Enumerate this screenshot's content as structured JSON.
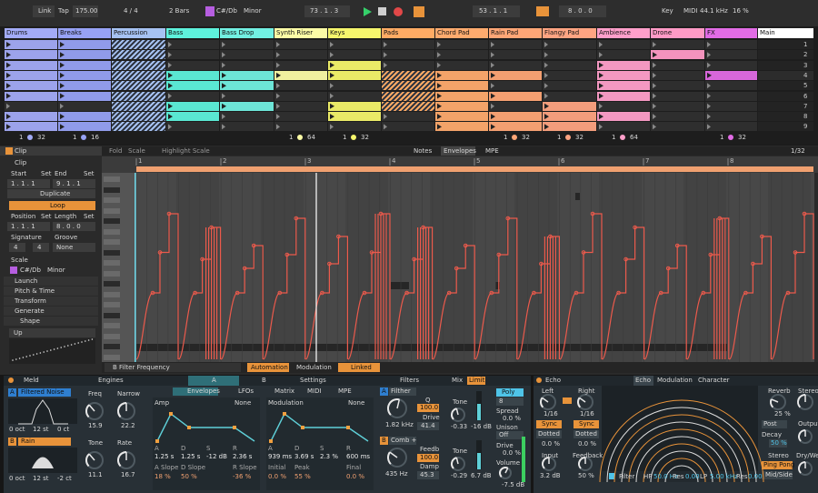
{
  "toolbar": {
    "link": "Link",
    "tap": "Tap",
    "tempo": "175.00",
    "signature": "4 / 4",
    "quantization": "2 Bars",
    "key": "C#/Db",
    "scale": "Minor",
    "arrangement_position": "73 .  1 .  3",
    "loop_start": "53 .  1 .  1",
    "loop_length": "8 .  0 .  0",
    "key_map": "Key",
    "midi_map": "MIDI",
    "sample_rate": "44.1 kHz",
    "cpu": "16 %"
  },
  "session": {
    "tracks": [
      {
        "name": "Drums",
        "color": "#a3abf7",
        "footer": [
          1,
          32
        ]
      },
      {
        "name": "Breaks",
        "color": "#97a2f5",
        "footer": [
          1,
          16
        ]
      },
      {
        "name": "Percussion",
        "color": "#a6c2f2"
      },
      {
        "name": "Bass",
        "color": "#5ef2dc"
      },
      {
        "name": "Bass Drop",
        "color": "#72f0e2"
      },
      {
        "name": "Synth Riser",
        "color": "#fcfca6",
        "footer": [
          1,
          64
        ]
      },
      {
        "name": "Keys",
        "color": "#f5f56c",
        "footer": [
          1,
          32
        ]
      },
      {
        "name": "Pads",
        "color": "#ffab64"
      },
      {
        "name": "Chord Pad",
        "color": "#ffab6e"
      },
      {
        "name": "Rain Pad",
        "color": "#ffa676",
        "footer": [
          1,
          32
        ]
      },
      {
        "name": "Flangy Pad",
        "color": "#ffa482",
        "footer": [
          1,
          32
        ]
      },
      {
        "name": "Ambience",
        "color": "#ff9fca",
        "footer": [
          1,
          64
        ]
      },
      {
        "name": "Drone",
        "color": "#ff9ac6"
      },
      {
        "name": "FX",
        "color": "#e26ce6",
        "footer": [
          1,
          32
        ]
      },
      {
        "name": "Main",
        "color": "#ffffff"
      }
    ],
    "scenes": [
      1,
      2,
      3,
      4,
      5,
      6,
      7,
      8,
      9
    ]
  },
  "clip": {
    "header": "Clip",
    "section": "Clip",
    "tabs": [
      "Fold",
      "Scale",
      "Highlight Scale"
    ],
    "editor_tabs": [
      "Notes",
      "Envelopes",
      "MPE"
    ],
    "grid": "1/32",
    "start_label": "Start",
    "set": "Set",
    "end_label": "End",
    "start": "1 .  1 .  1",
    "end": "9 .  1 .  1",
    "duplicate": "Duplicate",
    "loop": "Loop",
    "position_label": "Position",
    "length_label": "Length",
    "position": "1 .  1 .  1",
    "length": "8 .  0 .  0",
    "signature_label": "Signature",
    "groove_label": "Groove",
    "sig_num": 4,
    "sig_den": 4,
    "groove": "None",
    "scale_label": "Scale",
    "scale_root": "C#/Db",
    "scale_name": "Minor",
    "sections": [
      "Launch",
      "Pitch & Time",
      "Transform",
      "Generate"
    ],
    "shape": "Shape",
    "shape_type": "Up",
    "ruler": [
      1,
      2,
      3,
      4,
      5,
      6,
      7,
      8
    ],
    "envelope_param": "B Filter Frequency",
    "envelope_modes": [
      "Automation",
      "Modulation",
      "Linked"
    ]
  },
  "device": {
    "title": "Meld",
    "engines": "Engines",
    "tabs": [
      "A",
      "B"
    ],
    "settings": "Settings",
    "filters": "Filters",
    "mix": "Mix",
    "limit": "Limit",
    "osc_a": {
      "label": "A",
      "type": "Filtered Noise",
      "knobs": [
        {
          "name": "Freq",
          "value": "15.9"
        },
        {
          "name": "Narrow",
          "value": "22.2"
        }
      ],
      "tune": [
        "0 oct",
        "12 st",
        "0 ct"
      ]
    },
    "osc_b": {
      "label": "B",
      "type": "Rain",
      "knobs": [
        {
          "name": "Tone",
          "value": "11.1"
        },
        {
          "name": "Rate",
          "value": "16.7"
        }
      ],
      "tune": [
        "0 oct",
        "12 st",
        "-2 ct"
      ]
    },
    "env_tabs": [
      "Envelopes",
      "LFOs",
      "Matrix",
      "MIDI",
      "MPE"
    ],
    "amp": {
      "title": "Amp",
      "target": "None",
      "params": [
        {
          "name": "A",
          "value": "1.25 s"
        },
        {
          "name": "D",
          "value": "1.25 s"
        },
        {
          "name": "S",
          "value": "-12 dB"
        },
        {
          "name": "R",
          "value": "2.36 s"
        }
      ],
      "slopes": [
        {
          "name": "A Slope",
          "value": "18 %"
        },
        {
          "name": "D Slope",
          "value": "50 %"
        },
        {
          "name": "R Slope",
          "value": "-36 %"
        }
      ]
    },
    "modulation": {
      "title": "Modulation",
      "target": "None",
      "params": [
        {
          "name": "A",
          "value": "939 ms"
        },
        {
          "name": "D",
          "value": "3.69 s"
        },
        {
          "name": "S",
          "value": "2.3 %"
        },
        {
          "name": "R",
          "value": "600 ms"
        }
      ],
      "levels": [
        {
          "name": "Initial",
          "value": "0.0 %"
        },
        {
          "name": "Peak",
          "value": "55 %"
        },
        {
          "name": "Final",
          "value": "0.0 %"
        }
      ]
    },
    "filter_a": {
      "label": "A",
      "type": "Filther",
      "q_label": "Q",
      "q": "100.0",
      "drive_label": "Drive",
      "drive": "41.4",
      "freq": "1.82 kHz"
    },
    "filter_b": {
      "label": "B",
      "type": "Comb +",
      "feedback_label": "Feedb",
      "feedback": "100.0",
      "damp_label": "Damp",
      "damp": "45.3",
      "freq": "435 Hz"
    },
    "mix_a": {
      "tone_label": "Tone",
      "tone": "-0.33",
      "level": "-16 dB"
    },
    "mix_b": {
      "tone_label": "Tone",
      "tone": "-0.29",
      "level": "6.7 dB"
    },
    "voice": {
      "mode": "Poly",
      "voices": "8",
      "spread_label": "Spread",
      "spread": "0.0 %",
      "unison_label": "Unison",
      "unison": "Off",
      "drive_label": "Drive",
      "drive": "0.0 %",
      "volume_label": "Volume",
      "volume": "-7.5 dB"
    }
  },
  "echo": {
    "title": "Echo",
    "tabs": [
      "Echo",
      "Modulation",
      "Character"
    ],
    "left_label": "Left",
    "left": "1/16",
    "right_label": "Right",
    "right": "1/16",
    "sync": "Sync",
    "dotted": "Dotted",
    "left_offset": "0.0 %",
    "right_offset": "0.0 %",
    "input_label": "Input",
    "input": "3.2 dB",
    "feedback_label": "Feedback",
    "feedback": "50 %",
    "filter_label": "Filter",
    "hp_label": "HP",
    "hp": "50.0 Hz",
    "res_label": "Res",
    "hp_res": "0.00",
    "lp_label": "LP",
    "lp": "5.00 kHz",
    "lp_res": "0.00",
    "reverb_label": "Reverb",
    "reverb": "25 %",
    "reverb_pos": "Post",
    "decay_label": "Decay",
    "decay": "50 %",
    "stereo_label": "Stereo",
    "stereo_mode": "Ping Pong",
    "mid_side": "Mid/Side",
    "output_label": "Output",
    "dry_wet_label": "Dry/Wet"
  }
}
